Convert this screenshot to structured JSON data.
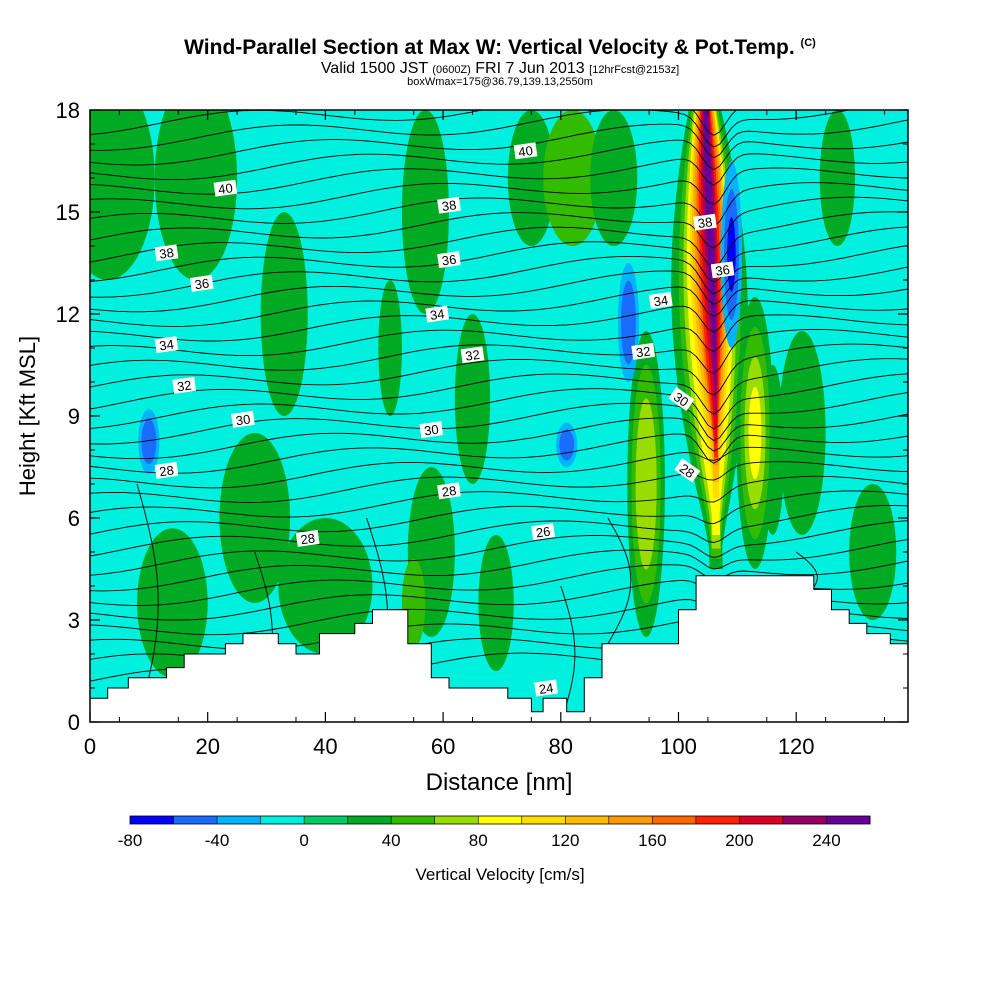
{
  "chart_data": {
    "type": "heatmap",
    "title": "Wind-Parallel Section at Max W: Vertical Velocity & Pot.Temp.",
    "title_mark": "(C)",
    "subtitle_main_a": "Valid 1500 JST",
    "subtitle_small_a": "(0600Z)",
    "subtitle_main_b": "FRI 7 Jun 2013",
    "subtitle_small_b": "[12hrFcst@2153z]",
    "subtitle2": "boxWmax=175@36.79,139.13,2550m",
    "xlabel": "Distance [nm]",
    "ylabel": "Height [Kft MSL]",
    "xlim": [
      0,
      139
    ],
    "ylim": [
      0,
      18
    ],
    "xticks": [
      0,
      20,
      40,
      60,
      80,
      100,
      120
    ],
    "yticks": [
      0,
      3,
      6,
      9,
      12,
      15,
      18
    ],
    "colorbar": {
      "label": "Vertical Velocity [cm/s]",
      "ticks": [
        "-80",
        "-40",
        "0",
        "40",
        "80",
        "120",
        "160",
        "200",
        "240"
      ],
      "bins": [
        -80,
        -60,
        -40,
        -20,
        0,
        20,
        40,
        60,
        80,
        100,
        120,
        140,
        160,
        180,
        200,
        220,
        240,
        260
      ],
      "colors": [
        "#0000ff",
        "#1a6cff",
        "#00b4ff",
        "#00f0e0",
        "#00cc66",
        "#00aa22",
        "#33bb00",
        "#99dd00",
        "#ffff00",
        "#ffdd00",
        "#ffbb00",
        "#ff9900",
        "#ff6600",
        "#ff2200",
        "#dd0022",
        "#990066",
        "#660099"
      ]
    },
    "background_color": "#00f0e0",
    "theta_contours": [
      {
        "value": 24,
        "label": "24",
        "label_x": 77.5,
        "label_z": 1.0
      },
      {
        "value": 26,
        "label": "26",
        "label_x": 77,
        "label_z": 5.6
      },
      {
        "value": 28,
        "label": "28",
        "label_x": 13,
        "label_z": 7.4
      },
      {
        "value": 28,
        "label": "28",
        "label_x": 61,
        "label_z": 6.8
      },
      {
        "value": 28,
        "label": "28",
        "label_x": 101.5,
        "label_z": 7.4
      },
      {
        "value": 28,
        "label": "28",
        "label_x": 37,
        "label_z": 5.4
      },
      {
        "value": 30,
        "label": "30",
        "label_x": 26,
        "label_z": 8.9
      },
      {
        "value": 30,
        "label": "30",
        "label_x": 58,
        "label_z": 8.6
      },
      {
        "value": 30,
        "label": "30",
        "label_x": 100.5,
        "label_z": 9.5
      },
      {
        "value": 32,
        "label": "32",
        "label_x": 16,
        "label_z": 9.9
      },
      {
        "value": 32,
        "label": "32",
        "label_x": 65,
        "label_z": 10.8
      },
      {
        "value": 32,
        "label": "32",
        "label_x": 94,
        "label_z": 10.9
      },
      {
        "value": 34,
        "label": "34",
        "label_x": 13,
        "label_z": 11.1
      },
      {
        "value": 34,
        "label": "34",
        "label_x": 59,
        "label_z": 12.0
      },
      {
        "value": 34,
        "label": "34",
        "label_x": 97,
        "label_z": 12.4
      },
      {
        "value": 36,
        "label": "36",
        "label_x": 19,
        "label_z": 12.9
      },
      {
        "value": 36,
        "label": "36",
        "label_x": 61,
        "label_z": 13.6
      },
      {
        "value": 36,
        "label": "36",
        "label_x": 107.5,
        "label_z": 13.3
      },
      {
        "value": 38,
        "label": "38",
        "label_x": 13,
        "label_z": 13.8
      },
      {
        "value": 38,
        "label": "38",
        "label_x": 61,
        "label_z": 15.2
      },
      {
        "value": 38,
        "label": "38",
        "label_x": 104.5,
        "label_z": 14.7
      },
      {
        "value": 40,
        "label": "40",
        "label_x": 23,
        "label_z": 15.7
      },
      {
        "value": 40,
        "label": "40",
        "label_x": 74,
        "label_z": 16.8
      }
    ],
    "terrain": [
      [
        0,
        0.7
      ],
      [
        3,
        0.7
      ],
      [
        3,
        1.0
      ],
      [
        6.5,
        1.0
      ],
      [
        6.5,
        1.3
      ],
      [
        13,
        1.3
      ],
      [
        13,
        1.6
      ],
      [
        16,
        1.6
      ],
      [
        16,
        2.0
      ],
      [
        23,
        2.0
      ],
      [
        23,
        2.3
      ],
      [
        26,
        2.3
      ],
      [
        26,
        2.6
      ],
      [
        32,
        2.6
      ],
      [
        32,
        2.3
      ],
      [
        35,
        2.3
      ],
      [
        35,
        2.0
      ],
      [
        39,
        2.0
      ],
      [
        39,
        2.6
      ],
      [
        45,
        2.6
      ],
      [
        45,
        2.9
      ],
      [
        48,
        2.9
      ],
      [
        48,
        3.3
      ],
      [
        54,
        3.3
      ],
      [
        54,
        2.3
      ],
      [
        58,
        2.3
      ],
      [
        58,
        1.3
      ],
      [
        61,
        1.3
      ],
      [
        61,
        1.0
      ],
      [
        71,
        1.0
      ],
      [
        71,
        0.7
      ],
      [
        75,
        0.7
      ],
      [
        75,
        0.3
      ],
      [
        77,
        0.3
      ],
      [
        77,
        0.7
      ],
      [
        81,
        0.7
      ],
      [
        81,
        0.3
      ],
      [
        84,
        0.3
      ],
      [
        84,
        1.3
      ],
      [
        87,
        1.3
      ],
      [
        87,
        2.3
      ],
      [
        100,
        2.3
      ],
      [
        100,
        3.3
      ],
      [
        103,
        3.3
      ],
      [
        103,
        4.3
      ],
      [
        123,
        4.3
      ],
      [
        123,
        3.9
      ],
      [
        126,
        3.9
      ],
      [
        126,
        3.3
      ],
      [
        129,
        3.3
      ],
      [
        129,
        2.9
      ],
      [
        132,
        2.9
      ],
      [
        132,
        2.6
      ],
      [
        136,
        2.6
      ],
      [
        136,
        2.3
      ],
      [
        139,
        2.3
      ]
    ],
    "w_features": [
      {
        "type": "updraft_core",
        "x": 106,
        "z_range": [
          4.5,
          18
        ],
        "tilt": "leans toward smaller distance with height",
        "w_max": 260
      },
      {
        "type": "updraft",
        "x": 94.5,
        "z_range": [
          2.5,
          11.5
        ],
        "w_max": 60
      },
      {
        "type": "updraft",
        "x": 113,
        "z_range": [
          4.5,
          12.5
        ],
        "w_max": 90
      },
      {
        "type": "downdraft",
        "x": 109,
        "z_range": [
          11,
          16.5
        ],
        "w_min": -80
      },
      {
        "type": "downdraft",
        "x": 91.5,
        "z_range": [
          10,
          13.5
        ],
        "w_min": -40
      },
      {
        "type": "downdraft",
        "x": 10,
        "z_range": [
          7.3,
          9.2
        ],
        "w_min": -40
      },
      {
        "type": "downdraft",
        "x": 81,
        "z_range": [
          7.5,
          8.8
        ],
        "w_min": -40
      }
    ]
  }
}
